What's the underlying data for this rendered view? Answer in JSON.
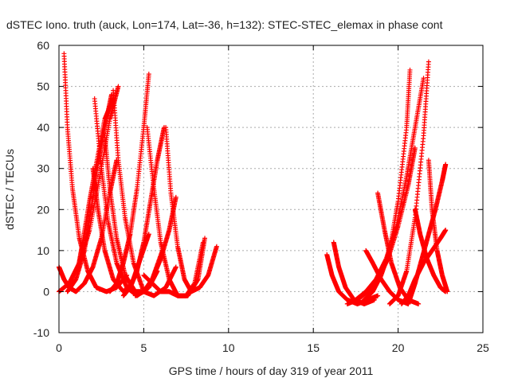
{
  "chart_data": {
    "type": "scatter",
    "title": "dSTEC Iono. truth (auck, Lon=174, Lat=-36, h=132): STEC-STEC_elemax in phase cont",
    "xlabel": "GPS time / hours of day 319 of year 2011",
    "ylabel": "dSTEC  / TECUs",
    "xlim": [
      0,
      25
    ],
    "ylim": [
      -10,
      60
    ],
    "xticks": [
      "0",
      "5",
      "10",
      "15",
      "20",
      "25"
    ],
    "yticks": [
      "-10",
      "0",
      "10",
      "20",
      "30",
      "40",
      "50",
      "60"
    ],
    "grid": true,
    "marker": "+",
    "color": "#ff0000",
    "series": [
      {
        "x": [
          0.0,
          0.3,
          0.6,
          1.0,
          1.5,
          2.0,
          2.5,
          3.0,
          3.4
        ],
        "y": [
          6,
          3,
          1,
          0,
          2,
          6,
          13,
          24,
          32
        ]
      },
      {
        "x": [
          0.3,
          0.5,
          0.8,
          1.2,
          1.7,
          2.2,
          2.8,
          3.4,
          4.0
        ],
        "y": [
          58,
          40,
          25,
          13,
          5,
          1,
          0,
          1,
          4
        ]
      },
      {
        "x": [
          0.0,
          0.6,
          1.2,
          1.8,
          2.4,
          3.0,
          3.5
        ],
        "y": [
          0,
          2,
          7,
          15,
          28,
          42,
          50
        ]
      },
      {
        "x": [
          1.1,
          1.4,
          1.8,
          2.2,
          2.7,
          3.2
        ],
        "y": [
          5,
          12,
          22,
          31,
          42,
          47
        ]
      },
      {
        "x": [
          0.5,
          1.0,
          1.5,
          1.9,
          2.3,
          2.7,
          3.1
        ],
        "y": [
          0,
          3,
          10,
          20,
          31,
          40,
          48
        ]
      },
      {
        "x": [
          2.0,
          2.3,
          2.7,
          3.2,
          3.8,
          4.3,
          4.8,
          5.3
        ],
        "y": [
          30,
          20,
          10,
          3,
          0,
          2,
          8,
          14
        ]
      },
      {
        "x": [
          2.1,
          2.5,
          2.9,
          3.4,
          4.0,
          4.6,
          5.3,
          5.8
        ],
        "y": [
          47,
          30,
          17,
          7,
          1,
          -1,
          1,
          5
        ]
      },
      {
        "x": [
          2.7,
          3.0,
          3.4,
          3.9,
          4.5,
          5.0,
          5.5,
          6.1
        ],
        "y": [
          38,
          25,
          13,
          4,
          0,
          0,
          3,
          10
        ]
      },
      {
        "x": [
          3.2,
          3.5,
          3.9,
          4.4,
          5.0,
          5.6,
          6.3,
          6.9
        ],
        "y": [
          49,
          32,
          18,
          7,
          0,
          -1,
          1,
          6
        ]
      },
      {
        "x": [
          3.0,
          3.4,
          3.8,
          4.2,
          4.6,
          5.0,
          5.3
        ],
        "y": [
          0,
          2,
          7,
          14,
          25,
          40,
          53
        ]
      },
      {
        "x": [
          3.8,
          4.2,
          4.6,
          5.0,
          5.4,
          5.8,
          6.2
        ],
        "y": [
          -1,
          1,
          5,
          12,
          22,
          32,
          40
        ]
      },
      {
        "x": [
          5.2,
          5.6,
          6.0,
          6.5,
          7.0,
          7.6,
          8.2,
          8.6
        ],
        "y": [
          40,
          25,
          12,
          3,
          -1,
          -1,
          3,
          13
        ]
      },
      {
        "x": [
          6.3,
          6.6,
          7.0,
          7.4,
          7.8,
          8.3,
          8.8,
          9.3
        ],
        "y": [
          40,
          24,
          11,
          3,
          0,
          1,
          4,
          11
        ]
      },
      {
        "x": [
          4.5,
          5.0,
          5.5,
          6.0,
          6.5,
          6.9
        ],
        "y": [
          -1,
          0,
          3,
          8,
          15,
          23
        ]
      },
      {
        "x": [
          5.0,
          5.5,
          6.0,
          6.5,
          7.0,
          7.5,
          8.0,
          8.5
        ],
        "y": [
          4,
          2,
          0,
          0,
          -1,
          -1,
          2,
          12
        ]
      },
      {
        "x": [
          15.8,
          16.1,
          16.5,
          17.0,
          17.6,
          18.2,
          18.8
        ],
        "y": [
          9,
          4,
          0,
          -2,
          -3,
          -2,
          -1
        ]
      },
      {
        "x": [
          16.2,
          16.5,
          16.9,
          17.4,
          18.0,
          18.6
        ],
        "y": [
          12,
          6,
          1,
          -2,
          -3,
          -2
        ]
      },
      {
        "x": [
          17.0,
          17.6,
          18.2,
          18.8,
          19.4,
          20.0,
          20.6,
          21.0
        ],
        "y": [
          -3,
          -2,
          0,
          3,
          8,
          16,
          26,
          35
        ]
      },
      {
        "x": [
          17.5,
          18.1,
          18.7,
          19.3,
          19.9,
          20.5,
          21.0,
          21.5
        ],
        "y": [
          -2,
          0,
          3,
          8,
          16,
          28,
          40,
          52
        ]
      },
      {
        "x": [
          18.0,
          18.5,
          19.0,
          19.5,
          20.0,
          20.5,
          20.7
        ],
        "y": [
          -2,
          0,
          4,
          10,
          22,
          40,
          54
        ]
      },
      {
        "x": [
          18.1,
          18.5,
          19.0,
          19.5,
          20.0,
          20.6
        ],
        "y": [
          10,
          7,
          3,
          0,
          -2,
          -3
        ]
      },
      {
        "x": [
          18.8,
          19.2,
          19.6,
          20.1,
          20.6,
          21.2
        ],
        "y": [
          24,
          15,
          7,
          1,
          -2,
          -3
        ]
      },
      {
        "x": [
          19.5,
          20.0,
          20.5,
          21.0,
          21.5,
          21.8
        ],
        "y": [
          -3,
          -1,
          5,
          18,
          38,
          56
        ]
      },
      {
        "x": [
          20.2,
          20.6,
          21.0,
          21.5,
          22.0,
          22.5,
          22.8
        ],
        "y": [
          -3,
          -1,
          3,
          7,
          10,
          13,
          15
        ]
      },
      {
        "x": [
          20.6,
          21.0,
          21.4,
          21.8,
          22.2,
          22.6,
          22.8
        ],
        "y": [
          -3,
          2,
          8,
          14,
          20,
          27,
          31
        ]
      },
      {
        "x": [
          21.0,
          21.3,
          21.7,
          22.1,
          22.5,
          22.8
        ],
        "y": [
          20,
          14,
          8,
          4,
          1,
          0
        ]
      },
      {
        "x": [
          21.8,
          22.0,
          22.3,
          22.6,
          22.9
        ],
        "y": [
          32,
          20,
          10,
          4,
          0
        ]
      }
    ]
  }
}
